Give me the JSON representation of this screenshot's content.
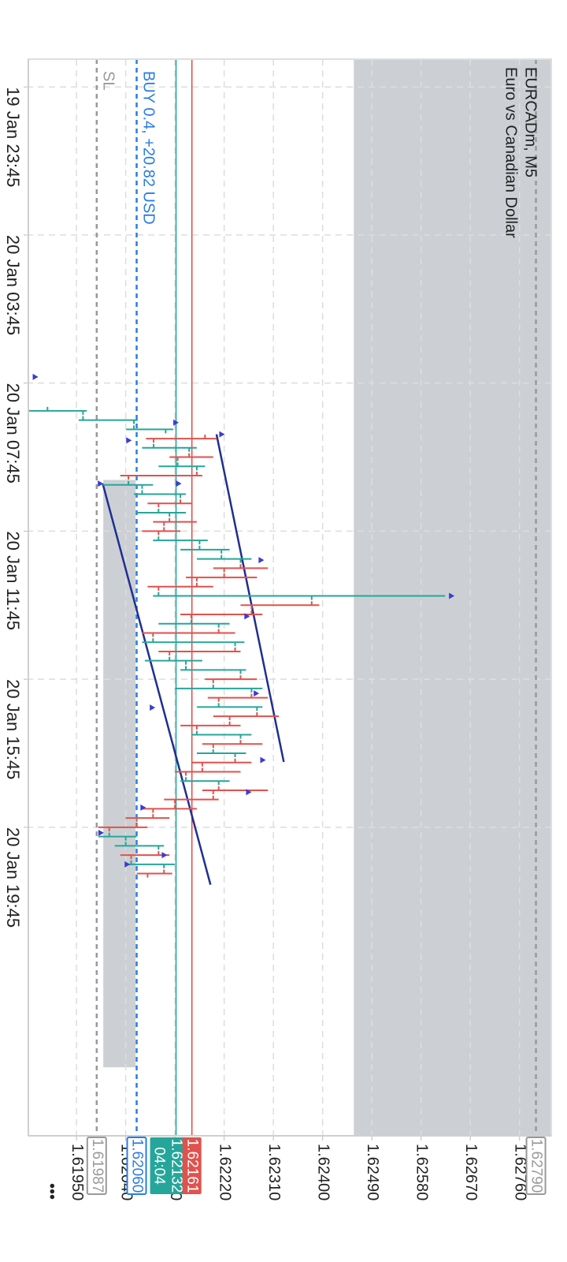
{
  "chart_data": {
    "type": "ohlc",
    "title": "EURCADm, M5",
    "subtitle": "Euro vs Canadian Dollar",
    "x": [
      "20 Jan 08:30",
      "20 Jan 08:45",
      "20 Jan 09:00",
      "20 Jan 09:15",
      "20 Jan 09:30",
      "20 Jan 09:45",
      "20 Jan 10:00",
      "20 Jan 10:15",
      "20 Jan 10:30",
      "20 Jan 10:45",
      "20 Jan 11:00",
      "20 Jan 11:15",
      "20 Jan 11:30",
      "20 Jan 11:45",
      "20 Jan 12:00",
      "20 Jan 12:15",
      "20 Jan 12:30",
      "20 Jan 12:45",
      "20 Jan 13:00",
      "20 Jan 13:15",
      "20 Jan 13:30",
      "20 Jan 13:45",
      "20 Jan 14:00",
      "20 Jan 14:15",
      "20 Jan 14:30",
      "20 Jan 14:45",
      "20 Jan 15:00",
      "20 Jan 15:15",
      "20 Jan 15:30",
      "20 Jan 15:45",
      "20 Jan 16:00",
      "20 Jan 16:15",
      "20 Jan 16:30",
      "20 Jan 16:45",
      "20 Jan 17:00",
      "20 Jan 17:15",
      "20 Jan 17:30",
      "20 Jan 17:45",
      "20 Jan 18:00",
      "20 Jan 18:15",
      "20 Jan 18:30",
      "20 Jan 18:45",
      "20 Jan 19:00",
      "20 Jan 19:15",
      "20 Jan 19:30",
      "20 Jan 19:45",
      "20 Jan 20:00",
      "20 Jan 20:15",
      "20 Jan 20:30",
      "20 Jan 20:45",
      "20 Jan 21:00"
    ],
    "open": [
      1.61897,
      1.61962,
      1.62055,
      1.62185,
      1.62091,
      1.62156,
      1.62135,
      1.6217,
      1.62045,
      1.6207,
      1.6214,
      1.621,
      1.6212,
      1.6211,
      1.621,
      1.62175,
      1.62215,
      1.6225,
      1.6222,
      1.6217,
      1.621,
      1.6238,
      1.6227,
      1.6216,
      1.6221,
      1.6209,
      1.6224,
      1.6212,
      1.6215,
      1.6225,
      1.622,
      1.6227,
      1.6221,
      1.6228,
      1.6223,
      1.6217,
      1.6225,
      1.622,
      1.6224,
      1.6218,
      1.6215,
      1.6221,
      1.622,
      1.6213,
      1.6209,
      1.6206,
      1.6201,
      1.6204,
      1.621,
      1.6205,
      1.6211
    ],
    "high": [
      1.61969,
      1.62062,
      1.62127,
      1.62206,
      1.6217,
      1.622,
      1.62185,
      1.6218,
      1.6209,
      1.6215,
      1.6216,
      1.6215,
      1.6217,
      1.6214,
      1.6219,
      1.6223,
      1.6227,
      1.623,
      1.6228,
      1.622,
      1.62624,
      1.62394,
      1.6229,
      1.6223,
      1.6224,
      1.62257,
      1.6225,
      1.6218,
      1.6226,
      1.6228,
      1.6229,
      1.623,
      1.6229,
      1.6232,
      1.6225,
      1.6227,
      1.6229,
      1.6226,
      1.6227,
      1.6225,
      1.6223,
      1.623,
      1.6221,
      1.6217,
      1.6212,
      1.6208,
      1.6206,
      1.6211,
      1.6212,
      1.6213,
      1.62125
    ],
    "low": [
      1.61862,
      1.61954,
      1.62041,
      1.62077,
      1.6207,
      1.6212,
      1.621,
      1.6203,
      1.61998,
      1.62055,
      1.6208,
      1.6206,
      1.6209,
      1.6207,
      1.6209,
      1.6214,
      1.6217,
      1.622,
      1.6215,
      1.6208,
      1.6209,
      1.6225,
      1.6214,
      1.621,
      1.6207,
      1.6207,
      1.621,
      1.62075,
      1.6214,
      1.62185,
      1.6213,
      1.6219,
      1.6217,
      1.622,
      1.6214,
      1.6216,
      1.6218,
      1.6217,
      1.6216,
      1.6213,
      1.6214,
      1.6218,
      1.6211,
      1.6207,
      1.6204,
      1.6199,
      1.6199,
      1.6202,
      1.6203,
      1.6204,
      1.6206
    ],
    "close": [
      1.61962,
      1.62055,
      1.62113,
      1.62091,
      1.62156,
      1.62135,
      1.6217,
      1.62045,
      1.6207,
      1.6214,
      1.621,
      1.6212,
      1.6211,
      1.621,
      1.62175,
      1.62215,
      1.6225,
      1.6222,
      1.6217,
      1.621,
      1.6238,
      1.6227,
      1.6216,
      1.6221,
      1.6209,
      1.6224,
      1.6212,
      1.6215,
      1.6225,
      1.622,
      1.6227,
      1.6221,
      1.6228,
      1.6223,
      1.6217,
      1.6225,
      1.622,
      1.6224,
      1.6218,
      1.6215,
      1.6221,
      1.622,
      1.6213,
      1.6209,
      1.6206,
      1.6201,
      1.6204,
      1.621,
      1.6205,
      1.6211,
      1.6208
    ],
    "up_color": "#26a69a",
    "down_color": "#e0524d",
    "xlim": [
      "19 Jan 23:00",
      "21 Jan 04:05"
    ],
    "xticks": [
      "19 Jan 23:45",
      "20 Jan 03:45",
      "20 Jan 07:45",
      "20 Jan 11:45",
      "20 Jan 15:45",
      "20 Jan 19:45"
    ],
    "ylim": [
      1.61862,
      1.62818
    ],
    "yticks": [
      {
        "value": 1.6195,
        "label": "1.61950"
      },
      {
        "value": 1.6204,
        "label": "1.62040"
      },
      {
        "value": 1.6213,
        "label": "1.62130"
      },
      {
        "value": 1.6222,
        "label": "1.62220"
      },
      {
        "value": 1.6231,
        "label": "1.62310"
      },
      {
        "value": 1.624,
        "label": "1.62400"
      },
      {
        "value": 1.6249,
        "label": "1.62490"
      },
      {
        "value": 1.6258,
        "label": "1.62580"
      },
      {
        "value": 1.6267,
        "label": "1.62670"
      },
      {
        "value": 1.6276,
        "label": "1.62760"
      }
    ],
    "grid": true,
    "zones": [
      {
        "low": 1.62457,
        "color": "#ccd0d4"
      },
      {
        "low": 1.61999,
        "high": 1.62058,
        "start": "20 Jan 10:22",
        "end": "21 Jan 02:14",
        "color": "#ccd0d4"
      }
    ],
    "levels": [
      {
        "value": 1.61987,
        "label": "1.61987",
        "text": "SL",
        "color": "#999999",
        "style": "dashed",
        "box": "outline"
      },
      {
        "value": 1.6206,
        "label": "1.62060",
        "text": "BUY 0.4,  +20.82 USD",
        "color": "#2a7de1",
        "style": "dashed",
        "box": "outline"
      },
      {
        "value": 1.62132,
        "label": "1.62132",
        "timer": "04:04",
        "color": "#26a69a",
        "style": "solid",
        "box": "filled"
      },
      {
        "value": 1.62161,
        "label": "1.62161",
        "color": "#e0524d",
        "style": "solid",
        "box": "filled"
      },
      {
        "value": 1.6279,
        "label": "1.62790",
        "color": "#999999",
        "style": "dashed",
        "box": "outline"
      }
    ],
    "trendlines": [
      {
        "x1": "20 Jan 10:28",
        "y1": 1.61998,
        "x2": "20 Jan 21:18",
        "y2": 1.62195,
        "color": "#1f2f8f"
      },
      {
        "x1": "20 Jan 09:08",
        "y1": 1.62206,
        "x2": "20 Jan 17:59",
        "y2": 1.62329,
        "color": "#1f2f8f"
      }
    ],
    "markers": {
      "color": "#3b3bd6",
      "x": [
        "20 Jan 07:35",
        "20 Jan 08:49",
        "20 Jan 09:08",
        "20 Jan 09:18",
        "20 Jan 10:28",
        "20 Jan 10:28",
        "20 Jan 12:32",
        "20 Jan 13:30",
        "20 Jan 14:03",
        "20 Jan 16:08",
        "20 Jan 16:31",
        "20 Jan 17:56",
        "20 Jan 18:48",
        "20 Jan 19:13",
        "20 Jan 19:54",
        "20 Jan 20:30",
        "20 Jan 20:45"
      ],
      "y": [
        1.6187,
        1.62127,
        1.62211,
        1.62041,
        1.61989,
        1.62132,
        1.62283,
        1.62631,
        1.62257,
        1.62274,
        1.62084,
        1.62286,
        1.6226,
        1.62067,
        1.6199,
        1.62106,
        1.62038
      ]
    }
  },
  "ui": {
    "menu": "•••"
  }
}
